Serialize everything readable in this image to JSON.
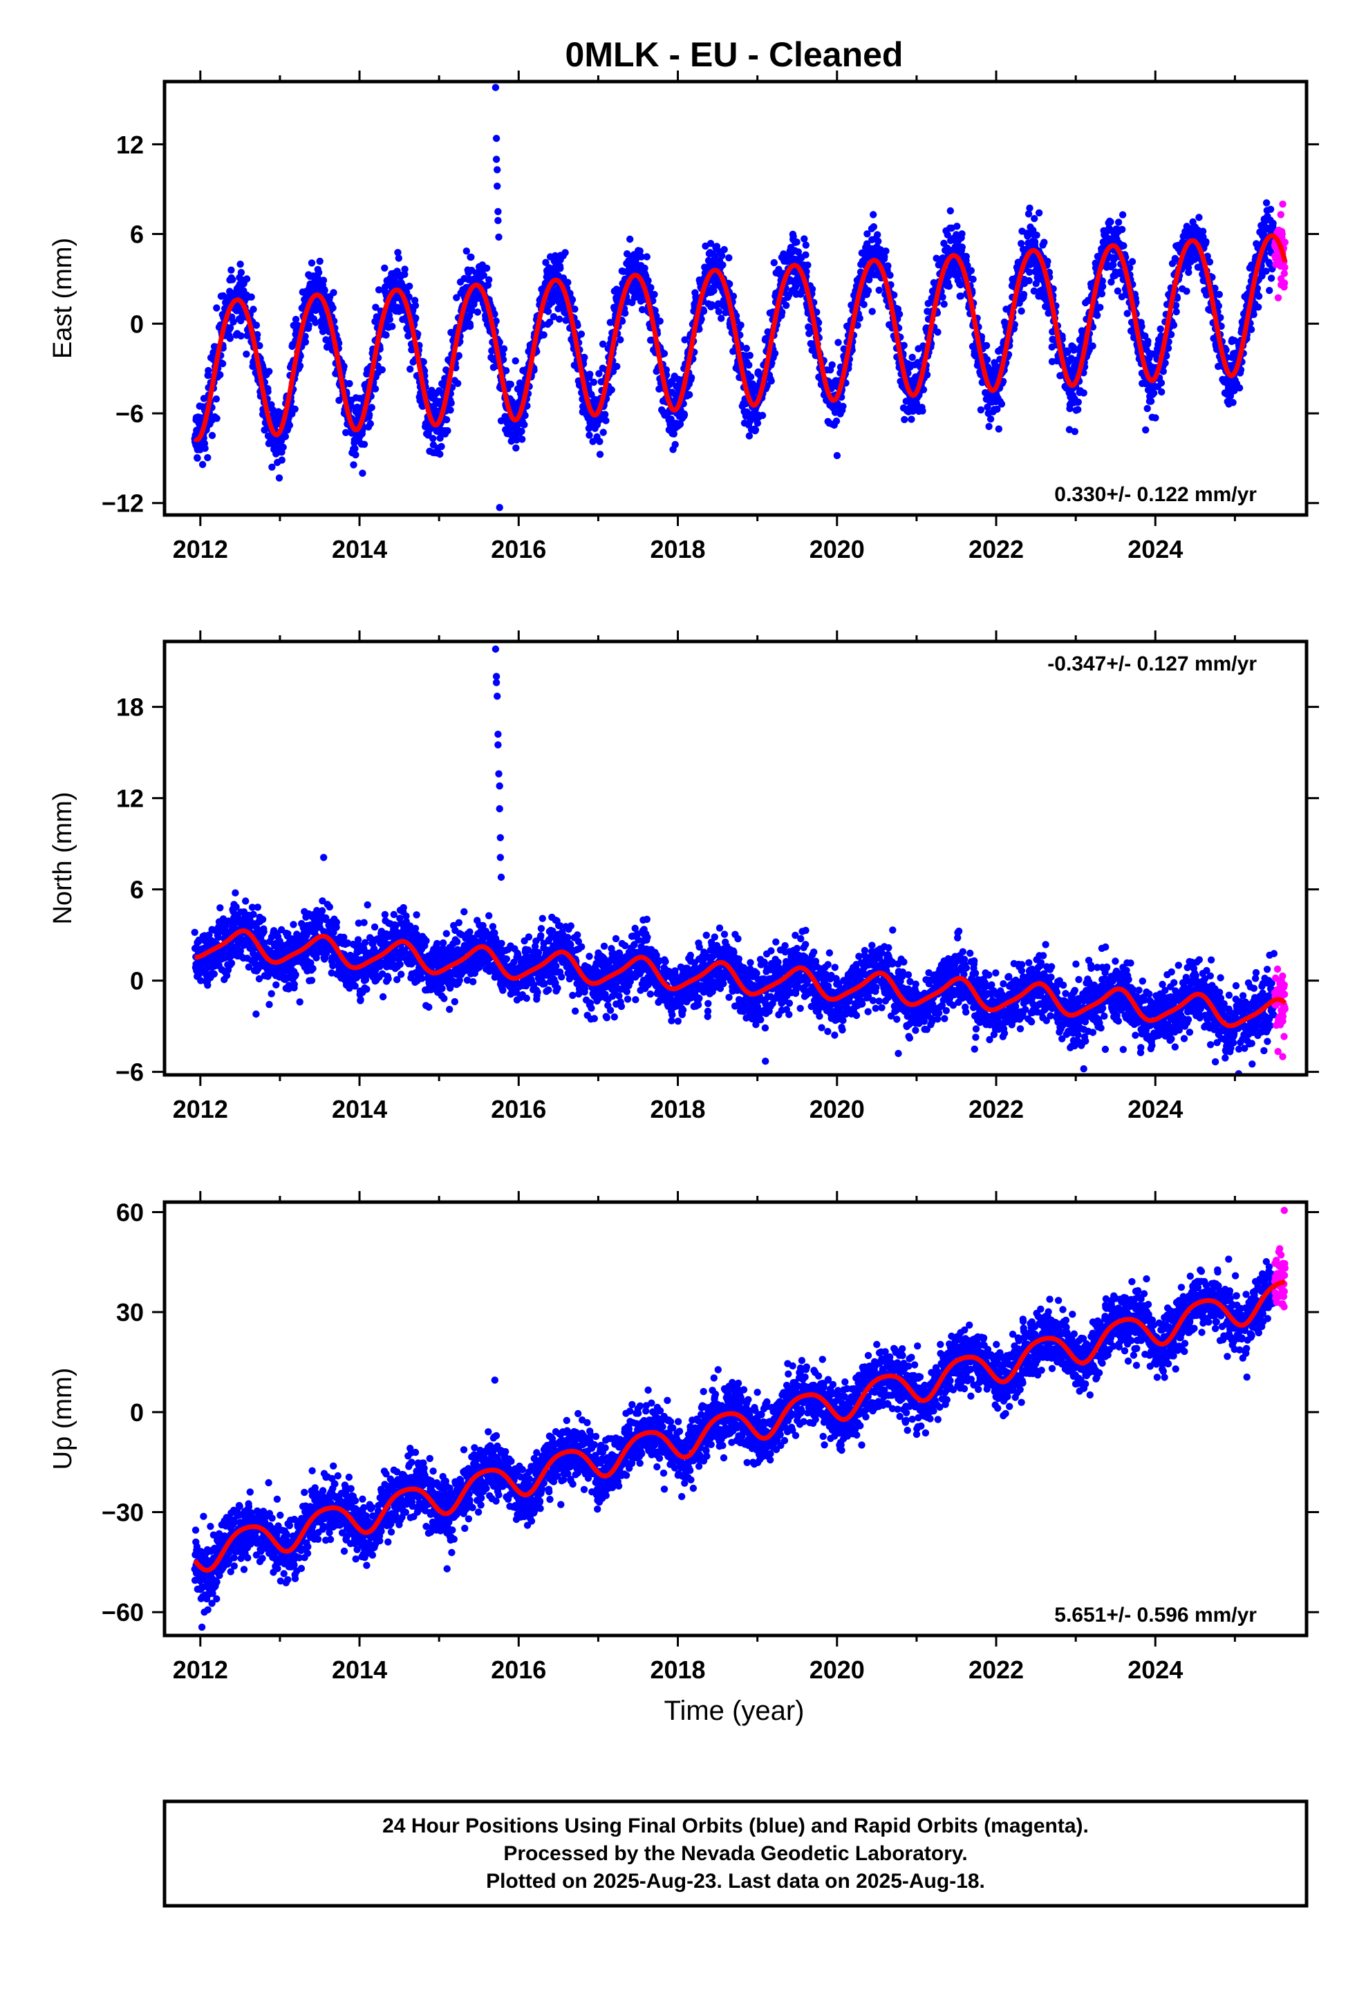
{
  "title": "0MLK  - EU - Cleaned",
  "xlabel": "Time (year)",
  "footer": {
    "line1": "24 Hour Positions Using Final Orbits (blue) and Rapid Orbits (magenta).",
    "line2": "Processed by the Nevada Geodetic Laboratory.",
    "line3": "Plotted on 2025-Aug-23. Last data on 2025-Aug-18."
  },
  "colors": {
    "final": "#0000ff",
    "rapid": "#ff00ff",
    "model": "#ff0000",
    "frame": "#000000"
  },
  "chart_data": [
    {
      "type": "scatter",
      "id": "east",
      "ylabel": "East (mm)",
      "rate_label": "0.330+/- 0.122 mm/yr",
      "rate_position": "bottom-right",
      "xlim": [
        2011.55,
        2025.9
      ],
      "ylim": [
        -12.8,
        16.2
      ],
      "xticks": [
        2012,
        2014,
        2016,
        2018,
        2020,
        2022,
        2024
      ],
      "xtick_labels": [
        "2012",
        "2014",
        "2016",
        "2018",
        "2020",
        "2022",
        "2024"
      ],
      "yticks": [
        -12,
        -6,
        0,
        6,
        12
      ],
      "ytick_labels": [
        "−12",
        "−6",
        "0",
        "6",
        "12"
      ],
      "data_start": 2011.93,
      "data_end": 2025.5,
      "rapid_start": 2025.5,
      "rapid_end": 2025.63,
      "model": {
        "a": -0.58,
        "rate_mm_yr": 0.33,
        "ref_year": 2018.75,
        "annual_amp": 4.6,
        "annual_peak": 0.46,
        "semiannual_amp": 0.35,
        "semiannual_peak": 0.2
      },
      "noise_mm": 1.1,
      "outliers": [
        {
          "x": 2015.71,
          "y": 15.8
        },
        {
          "x": 2015.72,
          "y": 12.4
        },
        {
          "x": 2015.72,
          "y": 11.0
        },
        {
          "x": 2015.73,
          "y": 10.3
        },
        {
          "x": 2015.73,
          "y": 9.2
        },
        {
          "x": 2015.74,
          "y": 7.5
        },
        {
          "x": 2015.74,
          "y": 6.9
        },
        {
          "x": 2015.75,
          "y": 5.8
        },
        {
          "x": 2015.76,
          "y": -12.3
        },
        {
          "x": 2015.78,
          "y": -6.5
        },
        {
          "x": 2016.0,
          "y": -7.2
        },
        {
          "x": 2012.9,
          "y": -9.6
        },
        {
          "x": 2012.95,
          "y": -8.7
        },
        {
          "x": 2025.6,
          "y": 8.0
        },
        {
          "x": 2025.58,
          "y": 2.6
        }
      ]
    },
    {
      "type": "scatter",
      "id": "north",
      "ylabel": "North (mm)",
      "rate_label": "-0.347+/- 0.127 mm/yr",
      "rate_position": "top-right",
      "xlim": [
        2011.55,
        2025.9
      ],
      "ylim": [
        -6.2,
        22.3
      ],
      "xticks": [
        2012,
        2014,
        2016,
        2018,
        2020,
        2022,
        2024
      ],
      "xtick_labels": [
        "2012",
        "2014",
        "2016",
        "2018",
        "2020",
        "2022",
        "2024"
      ],
      "yticks": [
        -6,
        0,
        6,
        12,
        18
      ],
      "ytick_labels": [
        "−6",
        "0",
        "6",
        "12",
        "18"
      ],
      "data_start": 2011.93,
      "data_end": 2025.5,
      "rapid_start": 2025.5,
      "rapid_end": 2025.63,
      "model": {
        "a": 0.1,
        "rate_mm_yr": -0.347,
        "ref_year": 2018.75,
        "annual_amp": 0.9,
        "annual_peak": 0.5,
        "semiannual_amp": 0.2,
        "semiannual_peak": 0.1
      },
      "noise_mm": 1.0,
      "outliers": [
        {
          "x": 2015.71,
          "y": 21.8
        },
        {
          "x": 2015.72,
          "y": 20.0
        },
        {
          "x": 2015.72,
          "y": 19.6
        },
        {
          "x": 2015.73,
          "y": 18.7
        },
        {
          "x": 2015.74,
          "y": 16.2
        },
        {
          "x": 2015.74,
          "y": 15.5
        },
        {
          "x": 2015.75,
          "y": 13.6
        },
        {
          "x": 2015.76,
          "y": 12.8
        },
        {
          "x": 2015.76,
          "y": 11.3
        },
        {
          "x": 2015.77,
          "y": 9.4
        },
        {
          "x": 2015.77,
          "y": 8.1
        },
        {
          "x": 2015.78,
          "y": 6.8
        },
        {
          "x": 2013.55,
          "y": 8.1
        },
        {
          "x": 2012.7,
          "y": -2.2
        },
        {
          "x": 2019.1,
          "y": -5.3
        },
        {
          "x": 2023.1,
          "y": -5.8
        },
        {
          "x": 2025.6,
          "y": -5.0
        }
      ]
    },
    {
      "type": "scatter",
      "id": "up",
      "ylabel": "Up (mm)",
      "rate_label": "5.651+/- 0.596 mm/yr",
      "rate_position": "bottom-right",
      "xlim": [
        2011.55,
        2025.9
      ],
      "ylim": [
        -67,
        63
      ],
      "xticks": [
        2012,
        2014,
        2016,
        2018,
        2020,
        2022,
        2024
      ],
      "xtick_labels": [
        "2012",
        "2014",
        "2016",
        "2018",
        "2020",
        "2022",
        "2024"
      ],
      "yticks": [
        -60,
        -30,
        0,
        30,
        60
      ],
      "ytick_labels": [
        "−60",
        "−30",
        "0",
        "30",
        "60"
      ],
      "data_start": 2011.93,
      "data_end": 2025.5,
      "rapid_start": 2025.5,
      "rapid_end": 2025.63,
      "model": {
        "a": -4.0,
        "rate_mm_yr": 5.651,
        "ref_year": 2018.75,
        "annual_amp": 5.0,
        "annual_peak": 0.6,
        "semiannual_amp": 0.8,
        "semiannual_peak": 0.35
      },
      "noise_mm": 4.5,
      "outliers": [
        {
          "x": 2012.02,
          "y": -64.5
        },
        {
          "x": 2012.05,
          "y": -60.0
        },
        {
          "x": 2012.08,
          "y": -56.0
        },
        {
          "x": 2015.7,
          "y": 9.6
        },
        {
          "x": 2015.1,
          "y": -47.0
        },
        {
          "x": 2025.15,
          "y": 10.5
        },
        {
          "x": 2025.62,
          "y": 60.5
        }
      ]
    }
  ]
}
